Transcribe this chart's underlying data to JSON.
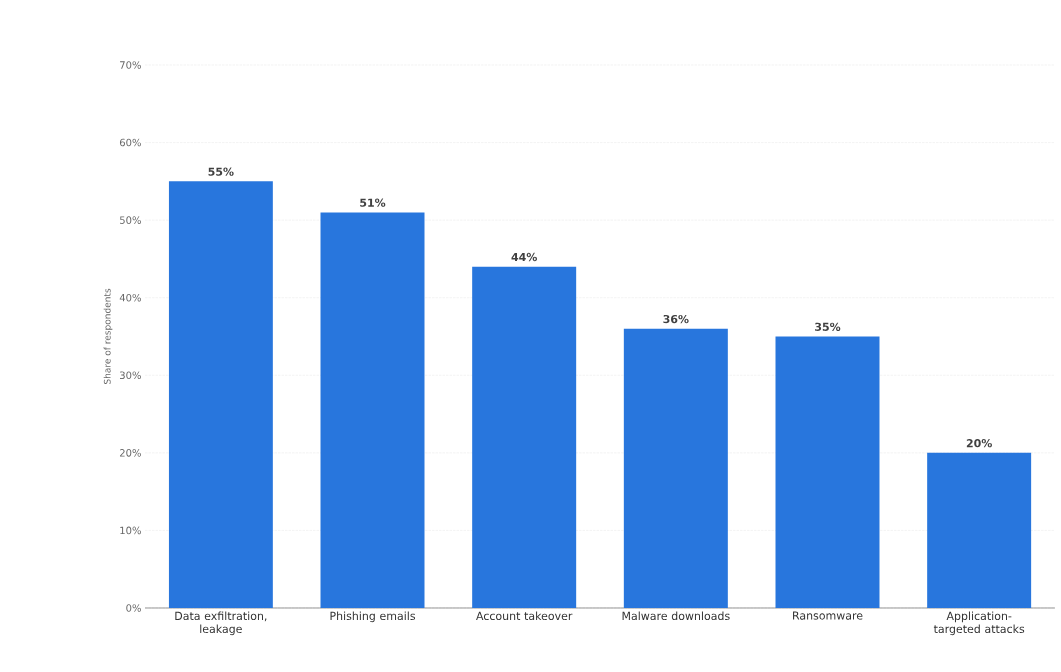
{
  "chart_data": {
    "type": "bar",
    "ylabel": "Share of respondents",
    "categories": [
      "Data exfiltration, leakage",
      "Phishing emails",
      "Account takeover",
      "Malware downloads",
      "Ransomware",
      "Application-targeted attacks"
    ],
    "values": [
      55,
      51,
      44,
      36,
      35,
      20
    ],
    "value_labels": [
      "55%",
      "51%",
      "44%",
      "36%",
      "35%",
      "20%"
    ],
    "color": "#2876dd",
    "ylim": [
      0,
      70
    ],
    "yticks": [
      {
        "value": 0,
        "label": "0%"
      },
      {
        "value": 10,
        "label": "10%"
      },
      {
        "value": 20,
        "label": "20%"
      },
      {
        "value": 30,
        "label": "30%"
      },
      {
        "value": 40,
        "label": "40%"
      },
      {
        "value": 50,
        "label": "50%"
      },
      {
        "value": 60,
        "label": "60%"
      },
      {
        "value": 70,
        "label": "70%"
      }
    ],
    "grid": "y"
  }
}
